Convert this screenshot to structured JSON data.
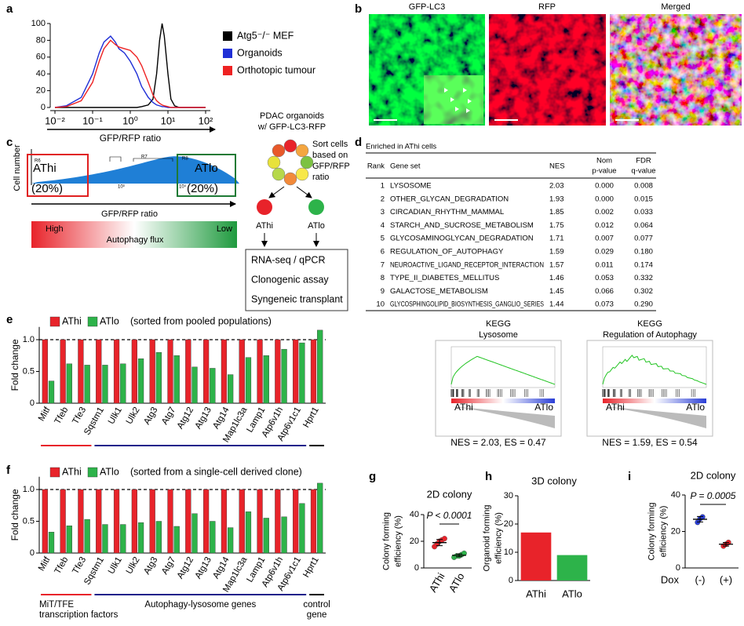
{
  "chart_data": [
    {
      "type": "line",
      "panel": "a",
      "xlabel": "GFP/RFP ratio",
      "xscale": "log",
      "x": [
        0.01,
        0.02,
        0.05,
        0.1,
        0.15,
        0.2,
        0.3,
        0.4,
        0.5,
        0.7,
        1,
        1.5,
        2,
        3,
        4,
        5,
        6,
        7,
        8,
        10,
        12,
        15,
        20,
        30,
        50,
        100
      ],
      "xlim": [
        0.01,
        100
      ],
      "xticks": [
        {
          "value": 0.01,
          "label": "10⁻²"
        },
        {
          "value": 0.1,
          "label": "10⁻¹"
        },
        {
          "value": 1,
          "label": "10⁰"
        },
        {
          "value": 10,
          "label": "10¹"
        },
        {
          "value": 100,
          "label": "10²"
        }
      ],
      "ylim": [
        0,
        100
      ],
      "yticks": [
        0,
        20,
        40,
        60,
        80,
        100
      ],
      "legend": "right",
      "series": [
        {
          "name": "Atg5⁻/⁻ MEF",
          "color": "#000000",
          "values": [
            0,
            0,
            0,
            0,
            0,
            0,
            0,
            0,
            0,
            0,
            0,
            0,
            1,
            3,
            10,
            40,
            80,
            100,
            85,
            40,
            10,
            2,
            0,
            0,
            0,
            0
          ]
        },
        {
          "name": "Organoids",
          "color": "#1f2fd6",
          "values": [
            0,
            2,
            12,
            40,
            65,
            78,
            85,
            78,
            70,
            65,
            55,
            40,
            25,
            12,
            6,
            3,
            2,
            1,
            1,
            0,
            0,
            0,
            0,
            0,
            0,
            0
          ]
        },
        {
          "name": "Orthotopic tumour",
          "color": "#ee2222",
          "values": [
            0,
            1,
            8,
            30,
            55,
            70,
            80,
            75,
            72,
            70,
            68,
            60,
            50,
            30,
            15,
            8,
            5,
            3,
            2,
            1,
            0,
            0,
            0,
            0,
            0,
            0
          ]
        }
      ]
    },
    {
      "type": "bar",
      "panel": "e",
      "ylabel": "Fold change",
      "subtitle": "(sorted from pooled populations)",
      "categories": [
        "Mitf",
        "Tfeb",
        "Tfe3",
        "Sqstm1",
        "Ulk1",
        "Ulk2",
        "Atg3",
        "Atg7",
        "Atg12",
        "Atg13",
        "Atg14",
        "Map1lc3a",
        "Lamp1",
        "Atp6v1h",
        "Atp6v1c1",
        "Hprt1"
      ],
      "series": [
        {
          "name": "AThi",
          "color": "#e8232a",
          "values": [
            1,
            1,
            1,
            1,
            1,
            1,
            1,
            1,
            1,
            1,
            1,
            1,
            1,
            1,
            1,
            1
          ]
        },
        {
          "name": "ATlo",
          "color": "#2db34a",
          "values": [
            0.35,
            0.62,
            0.6,
            0.6,
            0.62,
            0.7,
            0.8,
            0.75,
            0.57,
            0.55,
            0.45,
            0.72,
            0.75,
            0.85,
            0.95,
            1.15
          ]
        }
      ],
      "ylim": [
        0,
        1.2
      ],
      "yticks": [
        0,
        0.5,
        {
          "value": 1,
          "label": "1.0"
        }
      ],
      "reference_line": 1,
      "groups": [
        {
          "span": 3,
          "color": "#e8232a",
          "label_color": "#e8232a"
        },
        {
          "span": 12,
          "color": "#1b1f8a"
        },
        {
          "span": 1,
          "color": "#000000"
        }
      ]
    },
    {
      "type": "bar",
      "panel": "f",
      "ylabel": "Fold change",
      "subtitle": "(sorted from a single-cell derived clone)",
      "categories": [
        "Mitf",
        "Tfeb",
        "Tfe3",
        "Sqstm1",
        "Ulk1",
        "Ulk2",
        "Atg3",
        "Atg7",
        "Atg12",
        "Atg13",
        "Atg14",
        "Map1lc3a",
        "Lamp1",
        "Atp6v1h",
        "Atp6v1c1",
        "Hprt1"
      ],
      "series": [
        {
          "name": "AThi",
          "color": "#e8232a",
          "values": [
            1,
            1,
            1,
            1,
            1,
            1,
            1,
            1,
            1,
            1,
            1,
            1,
            1,
            1,
            1,
            1
          ]
        },
        {
          "name": "ATlo",
          "color": "#2db34a",
          "values": [
            0.33,
            0.43,
            0.53,
            0.45,
            0.45,
            0.48,
            0.5,
            0.42,
            0.62,
            0.5,
            0.4,
            0.65,
            0.55,
            0.57,
            0.78,
            1.1
          ]
        }
      ],
      "ylim": [
        0,
        1.2
      ],
      "yticks": [
        0,
        0.5,
        {
          "value": 1,
          "label": "1.0"
        }
      ],
      "reference_line": 1,
      "groups": [
        {
          "span": 3,
          "color": "#e8232a",
          "label_color": "#e8232a",
          "label": [
            "MiT/TFE",
            "transcription factors"
          ]
        },
        {
          "span": 12,
          "color": "#1b1f8a",
          "label": [
            "Autophagy-lysosome genes"
          ]
        },
        {
          "span": 1,
          "color": "#000000",
          "label": [
            "control",
            "gene"
          ]
        }
      ]
    },
    {
      "type": "dot",
      "panel": "g",
      "title": "2D colony",
      "ylabel": [
        "Colony forming",
        "efficiency (%)"
      ],
      "categories": [
        "AThi",
        "ATlo"
      ],
      "colors": [
        "#e8232a",
        "#2db34a"
      ],
      "values": [
        [
          16,
          18,
          20,
          21,
          22
        ],
        [
          8,
          9,
          9,
          10,
          11
        ]
      ],
      "means": [
        19,
        9.5
      ],
      "errors": [
        2.3,
        1.1
      ],
      "ylim": [
        0,
        40
      ],
      "yticks": [
        0,
        20,
        40
      ],
      "annotation": "P < 0.0001"
    },
    {
      "type": "bar",
      "panel": "h",
      "title": "3D colony",
      "ylabel": [
        "Organoid forming",
        "efficiency (%)"
      ],
      "categories": [
        "AThi",
        "ATlo"
      ],
      "colors": [
        "#e8232a",
        "#2db34a"
      ],
      "values": [
        17,
        9
      ],
      "ylim": [
        0,
        30
      ],
      "yticks": [
        0,
        10,
        20,
        30
      ]
    },
    {
      "type": "dot",
      "panel": "i",
      "title": "2D colony",
      "ylabel": [
        "Colony forming",
        "efficiency (%)"
      ],
      "xlabel": "Dox",
      "categories": [
        "(-)",
        "(+)"
      ],
      "colors": [
        "#2b3fd6",
        "#e8232a"
      ],
      "values": [
        [
          25,
          27,
          28
        ],
        [
          12,
          13,
          14
        ]
      ],
      "means": [
        26.7,
        13
      ],
      "errors": [
        1.5,
        1
      ],
      "ylim": [
        0,
        40
      ],
      "yticks": [
        0,
        20,
        40
      ],
      "annotation": "P = 0.0005"
    }
  ],
  "images": {
    "panel": "b",
    "titles": [
      {
        "text": "GFP-LC3",
        "color": "#2db34a"
      },
      {
        "text": "RFP",
        "color": "#e8232a"
      },
      {
        "text": "Merged",
        "color": "#000000"
      }
    ]
  },
  "diagram": {
    "panel": "c",
    "y_label": "Cell number",
    "gates": [
      "R6",
      "R7",
      "R8"
    ],
    "axis_ticks": [
      "10³",
      "10⁴"
    ],
    "low_gate": {
      "name": "AThi",
      "fraction": "(20%)"
    },
    "high_gate": {
      "name": "ATlo",
      "fraction": "(20%)"
    },
    "x_label": "GFP/RFP ratio",
    "flux": {
      "high": "High",
      "label": "Autophagy flux",
      "low": "Low"
    },
    "organoids": [
      "PDAC organoids",
      "w/ GFP-LC3-RFP"
    ],
    "sort": [
      "Sort cells",
      "based on",
      "GFP/RFP",
      "ratio"
    ],
    "populations": [
      "AThi",
      "ATlo"
    ],
    "assays": [
      "RNA-seq / qPCR",
      "Clonogenic assay",
      "Syngeneic transplant"
    ]
  },
  "table": {
    "panel": "d",
    "caption": "Enriched in AThi cells",
    "header": [
      "Rank",
      "Gene set",
      "NES",
      [
        "Nom",
        "p-value"
      ],
      [
        "FDR",
        "q-value"
      ]
    ],
    "rows": [
      [
        "1",
        "LYSOSOME",
        "2.03",
        "0.000",
        "0.008"
      ],
      [
        "2",
        "OTHER_GLYCAN_DEGRADATION",
        "1.93",
        "0.000",
        "0.015"
      ],
      [
        "3",
        "CIRCADIAN_RHYTHM_MAMMAL",
        "1.85",
        "0.002",
        "0.033"
      ],
      [
        "4",
        "STARCH_AND_SUCROSE_METABOLISM",
        "1.75",
        "0.012",
        "0.064"
      ],
      [
        "5",
        "GLYCOSAMINOGLYCAN_DEGRADATION",
        "1.71",
        "0.007",
        "0.077"
      ],
      [
        "6",
        "REGULATION_OF_AUTOPHAGY",
        "1.59",
        "0.029",
        "0.180"
      ],
      [
        "7",
        "NEUROACTIVE_LIGAND_RECEPTOR_INTERACTION",
        "1.57",
        "0.011",
        "0.174"
      ],
      [
        "8",
        "TYPE_II_DIABETES_MELLITUS",
        "1.46",
        "0.053",
        "0.332"
      ],
      [
        "9",
        "GALACTOSE_METABOLISM",
        "1.45",
        "0.066",
        "0.302"
      ],
      [
        "10",
        "GLYCOSPHINGOLIPID_BIOSYNTHESIS_GANGLIO_SERIES",
        "1.44",
        "0.073",
        "0.290"
      ]
    ]
  },
  "gsea": [
    {
      "title": [
        "KEGG",
        "Lysosome"
      ],
      "left": "AThi",
      "right": "ATlo",
      "stats": "NES = 2.03,  ES = 0.47"
    },
    {
      "title": [
        "KEGG",
        "Regulation of Autophagy"
      ],
      "left": "AThi",
      "right": "ATlo",
      "stats": "NES = 1.59,  ES = 0.54"
    }
  ]
}
